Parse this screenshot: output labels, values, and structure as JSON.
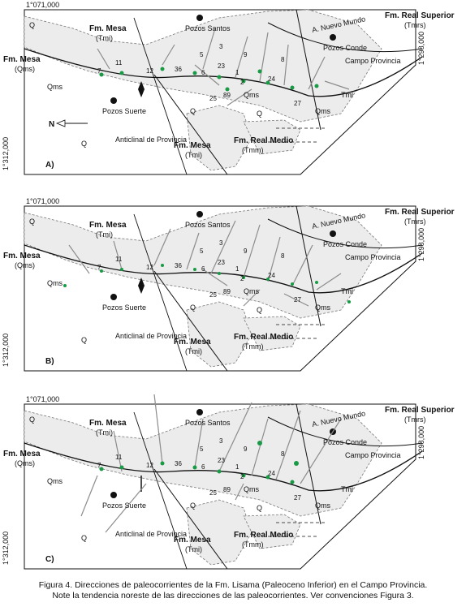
{
  "panels": [
    {
      "letter": "A)",
      "coord_top": "1°071,000",
      "coord_left": "1°312,000",
      "coord_right": "1°298,000",
      "labels": {
        "fm_mesa_top": "Fm. Mesa",
        "tmi_top": "(Tmi)",
        "fm_mesa_left": "Fm. Mesa",
        "qms_left": "(Qms)",
        "pozos_santos": "Pozos Santos",
        "fm_real_sup": "Fm. Real Superior",
        "tmrs": "(Tmrs)",
        "nuevo_mundo": "A. Nuevo Mundo",
        "pozos_conde": "Pozos Conde",
        "campo_provincia": "Campo Provincia",
        "pozos_suerte": "Pozos Suerte",
        "anticlinal": "Anticlinal de Provincia",
        "fm_mesa_bottom": "Fm. Mesa",
        "tmi_bottom": "(Tmi)",
        "fm_real_medio": "Fm. Real Medio",
        "tmm": "(Tmm)",
        "north": "N",
        "qms_a": "Qms",
        "qms_b": "Qms",
        "qms_c": "Qms",
        "tmi_c": "Tmi",
        "q_a": "Q",
        "q_b": "Q",
        "q_c": "Q",
        "q_d": "Q",
        "wells": [
          "7",
          "11",
          "12",
          "36",
          "5",
          "3",
          "23",
          "9",
          "8",
          "6",
          "1",
          "2",
          "24",
          "25",
          "89",
          "27"
        ]
      }
    },
    {
      "letter": "B)",
      "coord_top": "1°071,000",
      "coord_left": "1°312,000",
      "coord_right": "1°298,000",
      "labels": {
        "fm_mesa_top": "Fm. Mesa",
        "tmi_top": "(Tmi)",
        "fm_mesa_left": "Fm. Mesa",
        "qms_left": "(Qms)",
        "pozos_santos": "Pozos Santos",
        "fm_real_sup": "Fm. Real Superior",
        "tmrs": "(Tmrs)",
        "nuevo_mundo": "A. Nuevo Mundo",
        "pozos_conde": "Pozos Conde",
        "campo_provincia": "Campo Provincia",
        "pozos_suerte": "Pozos Suerte",
        "anticlinal": "Anticlinal de Provincia",
        "fm_mesa_bottom": "Fm. Mesa",
        "tmi_bottom": "(Tmi)",
        "fm_real_medio": "Fm. Real Medio",
        "tmm": "(Tmm)",
        "north": "",
        "qms_a": "Qms",
        "qms_b": "Qms",
        "qms_c": "Qms",
        "tmi_c": "Tmi",
        "q_a": "Q",
        "q_b": "Q",
        "q_c": "Q",
        "q_d": "Q",
        "wells": [
          "7",
          "11",
          "12",
          "36",
          "5",
          "3",
          "23",
          "9",
          "8",
          "6",
          "1",
          "2",
          "24",
          "25",
          "89",
          "27"
        ]
      }
    },
    {
      "letter": "C)",
      "coord_top": "1°071,000",
      "coord_left": "1°312,000",
      "coord_right": "1°298,000",
      "labels": {
        "fm_mesa_top": "Fm. Mesa",
        "tmi_top": "(Tmi)",
        "fm_mesa_left": "Fm. Mesa",
        "qms_left": "(Qms)",
        "pozos_santos": "Pozos Santos",
        "fm_real_sup": "Fm. Real Superior",
        "tmrs": "(Tmrs)",
        "nuevo_mundo": "A. Nuevo Mundo",
        "pozos_conde": "Pozos Conde",
        "campo_provincia": "Campo Provincia",
        "pozos_suerte": "Pozos Suerte",
        "anticlinal": "Anticlinal de Provincia",
        "fm_mesa_bottom": "Fm. Mesa",
        "tmi_bottom": "(Tmi)",
        "fm_real_medio": "Fm. Real Medio",
        "tmm": "(Tmm)",
        "north": "",
        "qms_a": "Qms",
        "qms_b": "Qms",
        "qms_c": "Qms",
        "tmi_c": "Tmi",
        "q_a": "Q",
        "q_b": "Q",
        "q_c": "Q",
        "q_d": "Q",
        "wells": [
          "7",
          "11",
          "12",
          "36",
          "5",
          "3",
          "23",
          "9",
          "8",
          "6",
          "1",
          "2",
          "24",
          "25",
          "89",
          "27"
        ]
      }
    }
  ],
  "caption": {
    "line1": "Figura 4.  Direcciones de paleocorrientes de la Fm. Lisama (Paleoceno Inferior) en el Campo Provincia.",
    "line2": "Note la tendencia noreste de las direcciones de las paleocorrientes. Ver convenciones Figura 3."
  },
  "colors": {
    "well_dot": "#1a9a46",
    "arrow": "#8c8c8c",
    "outcrop_fill": "#ececec",
    "line": "#111111"
  }
}
